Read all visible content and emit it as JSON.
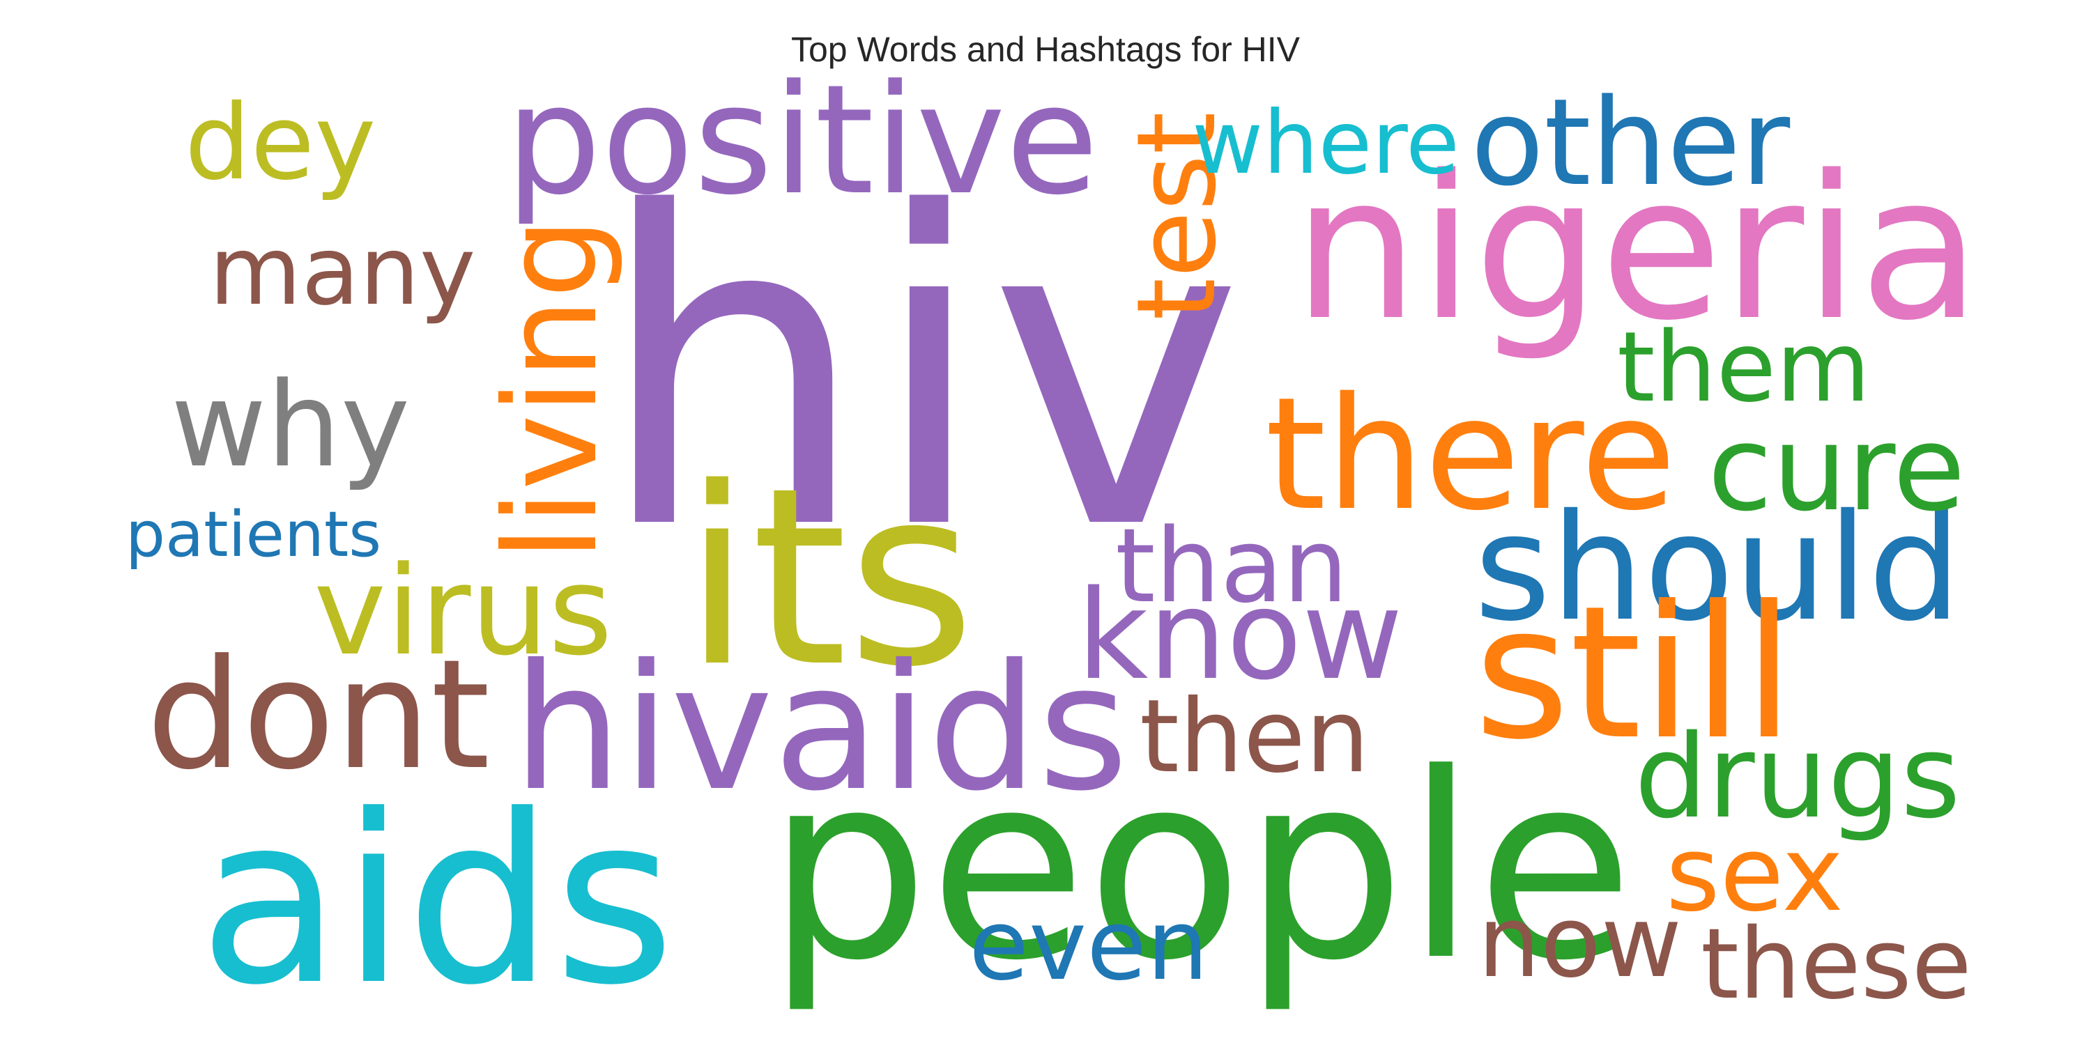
{
  "title": "Top Words and Hashtags for HIV",
  "palette": {
    "blue": "#1f77b4",
    "orange": "#ff7f0e",
    "green": "#2ca02c",
    "purple": "#9467bd",
    "brown": "#8c564b",
    "pink": "#e377c2",
    "gray": "#7f7f7f",
    "olive": "#bcbd22",
    "cyan": "#17becf"
  },
  "words": [
    {
      "text": "hiv",
      "color": "purple",
      "rotated": false
    },
    {
      "text": "people",
      "color": "green",
      "rotated": false
    },
    {
      "text": "aids",
      "color": "cyan",
      "rotated": false
    },
    {
      "text": "nigeria",
      "color": "pink",
      "rotated": false
    },
    {
      "text": "positive",
      "color": "purple",
      "rotated": false
    },
    {
      "text": "its",
      "color": "olive",
      "rotated": false
    },
    {
      "text": "hivaids",
      "color": "purple",
      "rotated": false
    },
    {
      "text": "dont",
      "color": "brown",
      "rotated": false
    },
    {
      "text": "should",
      "color": "blue",
      "rotated": false
    },
    {
      "text": "there",
      "color": "orange",
      "rotated": false
    },
    {
      "text": "know",
      "color": "purple",
      "rotated": false
    },
    {
      "text": "why",
      "color": "gray",
      "rotated": false
    },
    {
      "text": "many",
      "color": "brown",
      "rotated": false
    },
    {
      "text": "other",
      "color": "blue",
      "rotated": false
    },
    {
      "text": "living",
      "color": "orange",
      "rotated": true
    },
    {
      "text": "now",
      "color": "brown",
      "rotated": false
    },
    {
      "text": "still",
      "color": "orange",
      "rotated": false
    },
    {
      "text": "dey",
      "color": "olive",
      "rotated": false
    },
    {
      "text": "drugs",
      "color": "green",
      "rotated": false
    },
    {
      "text": "them",
      "color": "green",
      "rotated": false
    },
    {
      "text": "virus",
      "color": "olive",
      "rotated": false
    },
    {
      "text": "test",
      "color": "orange",
      "rotated": true
    },
    {
      "text": "than",
      "color": "purple",
      "rotated": false
    },
    {
      "text": "where",
      "color": "cyan",
      "rotated": false
    },
    {
      "text": "cure",
      "color": "green",
      "rotated": false
    },
    {
      "text": "then",
      "color": "brown",
      "rotated": false
    },
    {
      "text": "even",
      "color": "blue",
      "rotated": false
    },
    {
      "text": "these",
      "color": "brown",
      "rotated": false
    },
    {
      "text": "sex",
      "color": "orange",
      "rotated": false
    },
    {
      "text": "patients",
      "color": "blue",
      "rotated": false
    }
  ]
}
